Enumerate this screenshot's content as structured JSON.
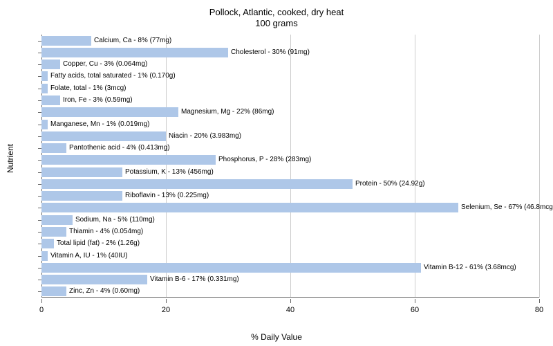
{
  "chart": {
    "type": "bar_horizontal",
    "title": "Pollock, Atlantic, cooked, dry heat",
    "subtitle": "100 grams",
    "x_axis_label": "% Daily Value",
    "y_axis_label": "Nutrient",
    "xlim": [
      0,
      80
    ],
    "xticks": [
      0,
      20,
      40,
      60,
      80
    ],
    "bar_color": "#aec7e8",
    "grid_color": "#cccccc",
    "text_color": "#000000",
    "background_color": "#ffffff",
    "title_fontsize": 13,
    "label_fontsize": 12,
    "tick_fontsize": 11,
    "barlabel_fontsize": 10,
    "items": [
      {
        "name": "Calcium, Ca",
        "pct": 8,
        "amount": "77mg"
      },
      {
        "name": "Cholesterol",
        "pct": 30,
        "amount": "91mg"
      },
      {
        "name": "Copper, Cu",
        "pct": 3,
        "amount": "0.064mg"
      },
      {
        "name": "Fatty acids, total saturated",
        "pct": 1,
        "amount": "0.170g"
      },
      {
        "name": "Folate, total",
        "pct": 1,
        "amount": "3mcg"
      },
      {
        "name": "Iron, Fe",
        "pct": 3,
        "amount": "0.59mg"
      },
      {
        "name": "Magnesium, Mg",
        "pct": 22,
        "amount": "86mg"
      },
      {
        "name": "Manganese, Mn",
        "pct": 1,
        "amount": "0.019mg"
      },
      {
        "name": "Niacin",
        "pct": 20,
        "amount": "3.983mg"
      },
      {
        "name": "Pantothenic acid",
        "pct": 4,
        "amount": "0.413mg"
      },
      {
        "name": "Phosphorus, P",
        "pct": 28,
        "amount": "283mg"
      },
      {
        "name": "Potassium, K",
        "pct": 13,
        "amount": "456mg"
      },
      {
        "name": "Protein",
        "pct": 50,
        "amount": "24.92g"
      },
      {
        "name": "Riboflavin",
        "pct": 13,
        "amount": "0.225mg"
      },
      {
        "name": "Selenium, Se",
        "pct": 67,
        "amount": "46.8mcg"
      },
      {
        "name": "Sodium, Na",
        "pct": 5,
        "amount": "110mg"
      },
      {
        "name": "Thiamin",
        "pct": 4,
        "amount": "0.054mg"
      },
      {
        "name": "Total lipid (fat)",
        "pct": 2,
        "amount": "1.26g"
      },
      {
        "name": "Vitamin A, IU",
        "pct": 1,
        "amount": "40IU"
      },
      {
        "name": "Vitamin B-12",
        "pct": 61,
        "amount": "3.68mcg"
      },
      {
        "name": "Vitamin B-6",
        "pct": 17,
        "amount": "0.331mg"
      },
      {
        "name": "Zinc, Zn",
        "pct": 4,
        "amount": "0.60mg"
      }
    ]
  }
}
